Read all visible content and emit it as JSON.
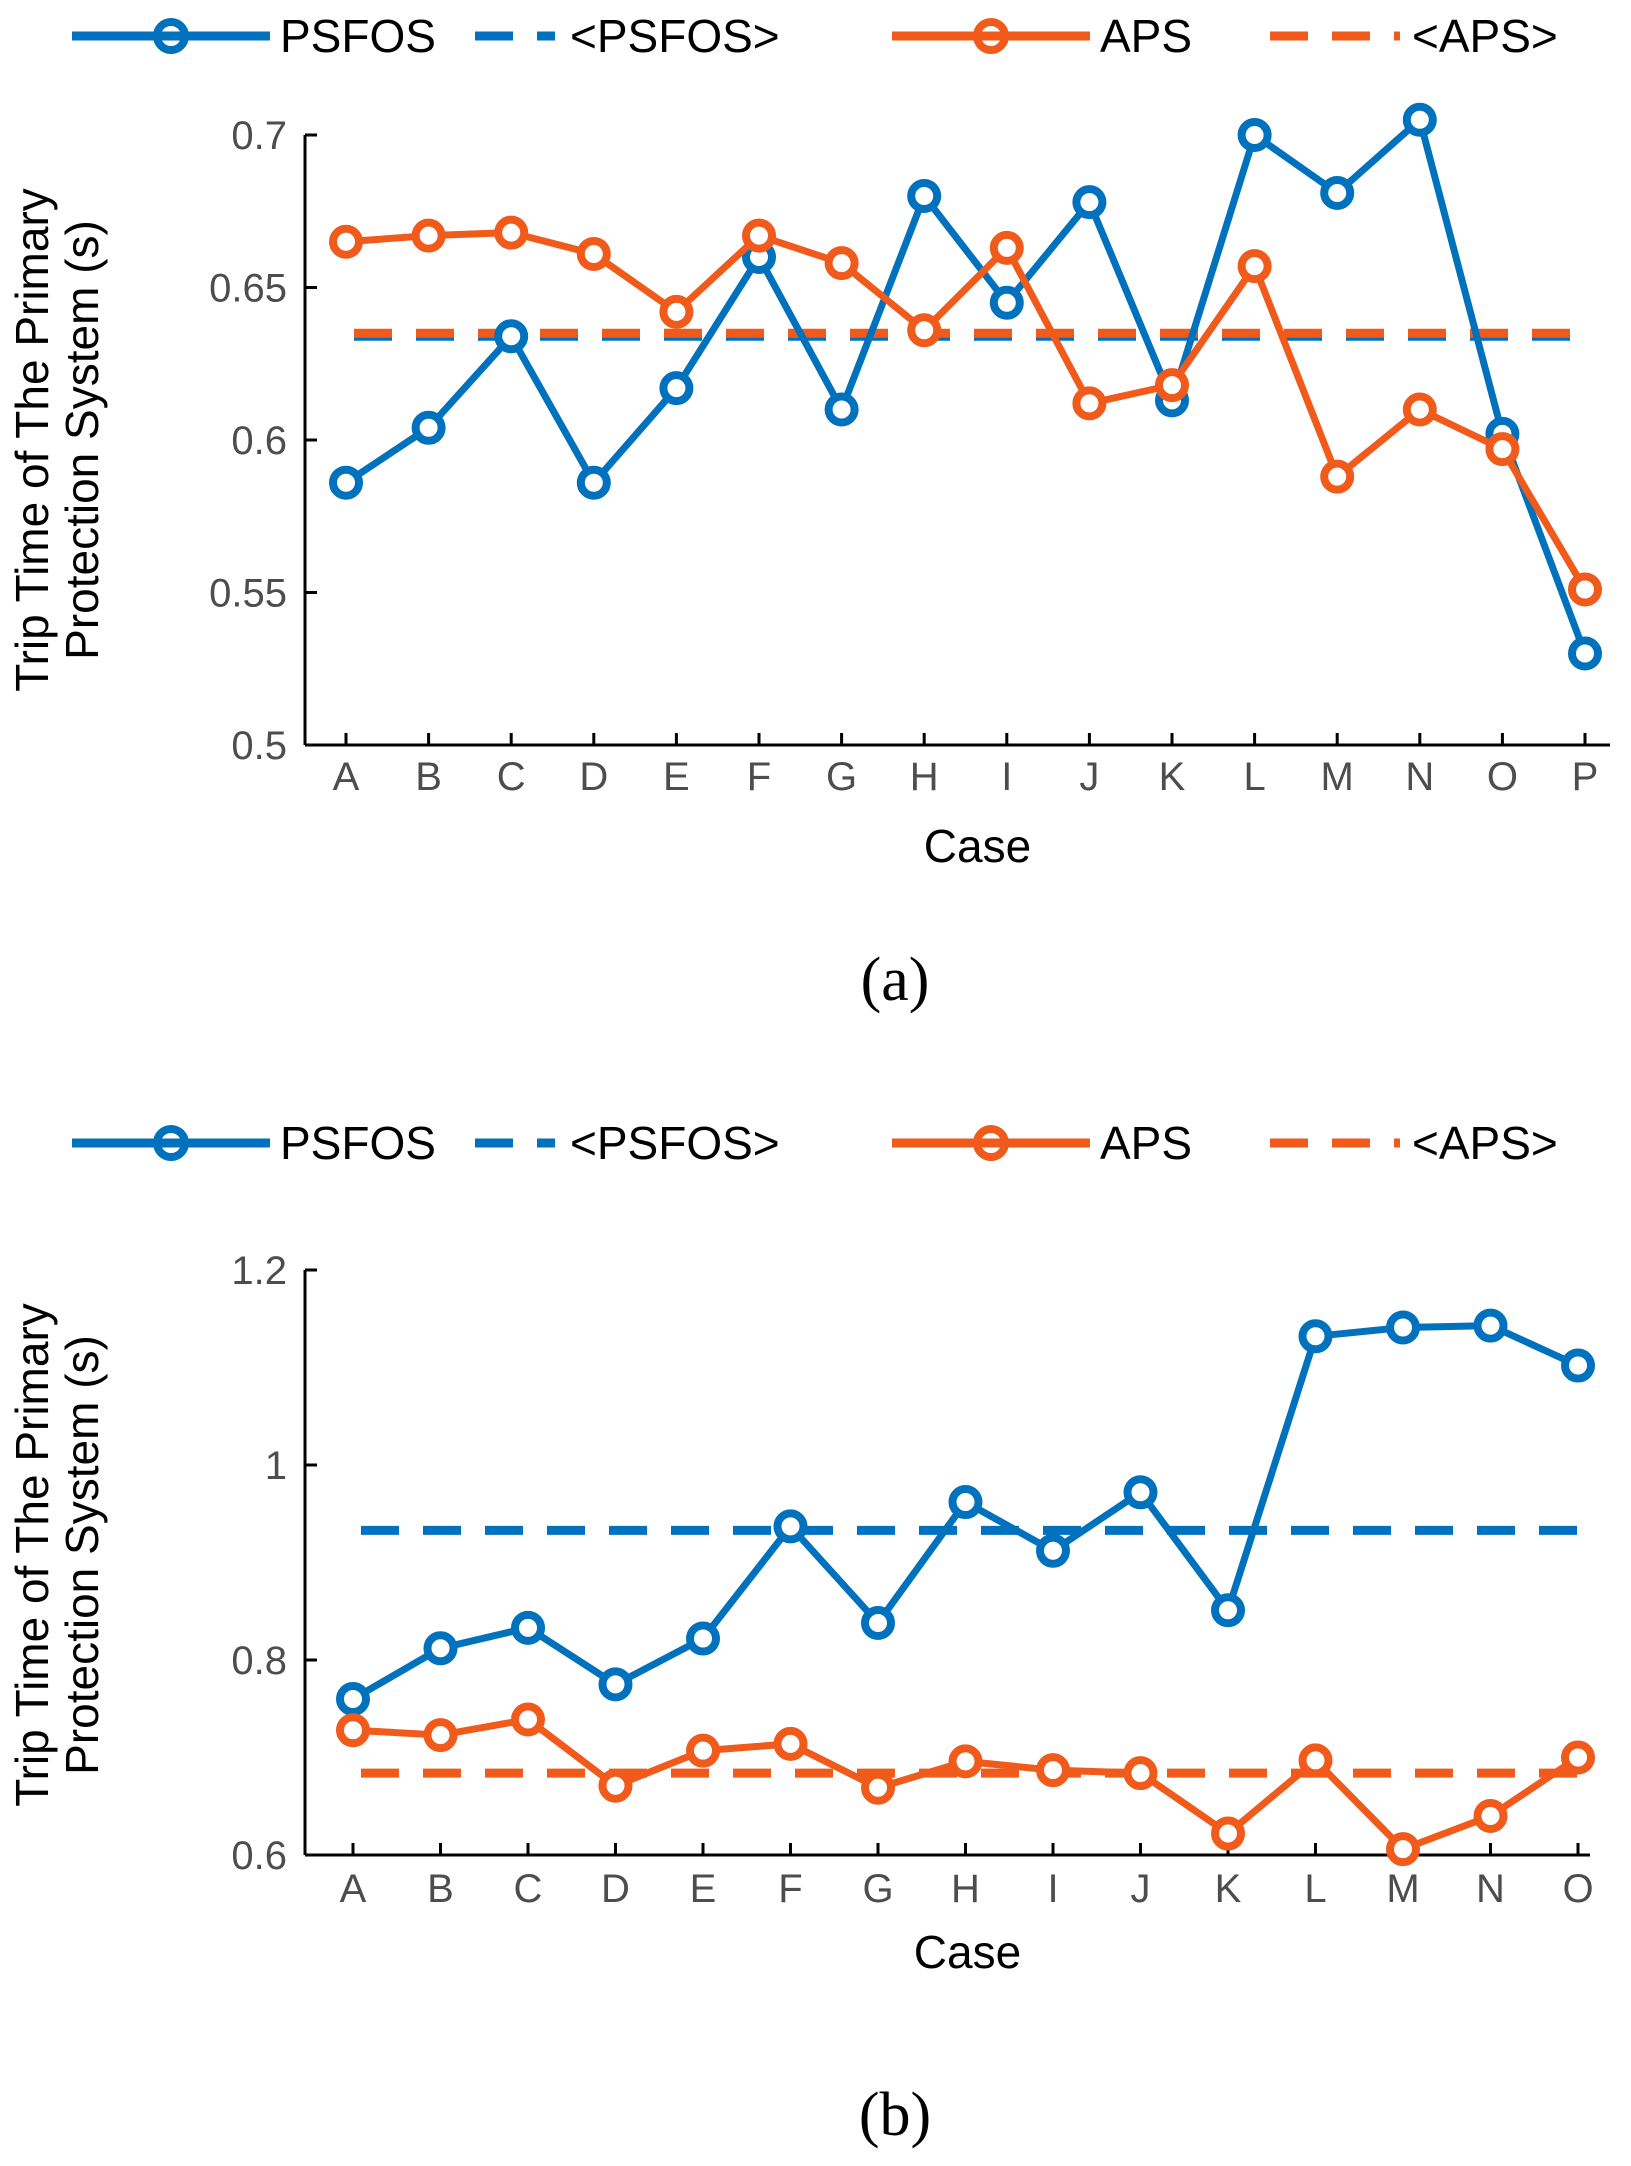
{
  "colors": {
    "psfos": "#0072bd",
    "aps": "#f05a1a"
  },
  "chart_data": [
    {
      "type": "line",
      "caption": "(a)",
      "xlabel": "Case",
      "ylabel_line1": "Trip Time of The Primary",
      "ylabel_line2": "Protection System (s)",
      "ylim": [
        0.5,
        0.7
      ],
      "yticks": [
        0.5,
        0.55,
        0.6,
        0.65,
        0.7
      ],
      "ytick_labels": [
        "0.5",
        "0.55",
        "0.6",
        "0.65",
        "0.7"
      ],
      "categories": [
        "A",
        "B",
        "C",
        "D",
        "E",
        "F",
        "G",
        "H",
        "I",
        "J",
        "K",
        "L",
        "M",
        "N",
        "O",
        "P"
      ],
      "legend": [
        "PSFOS",
        "<PSFOS>",
        "APS",
        "<APS>"
      ],
      "series": [
        {
          "name": "PSFOS",
          "style": "solid-marker",
          "color": "psfos",
          "values": [
            0.586,
            0.604,
            0.634,
            0.586,
            0.617,
            0.66,
            0.61,
            0.68,
            0.645,
            0.678,
            0.613,
            0.7,
            0.681,
            0.705,
            0.602,
            0.53
          ]
        },
        {
          "name": "<PSFOS>",
          "style": "dashed",
          "color": "psfos",
          "values": [
            0.634,
            0.634,
            0.634,
            0.634,
            0.634,
            0.634,
            0.634,
            0.634,
            0.634,
            0.634,
            0.634,
            0.634,
            0.634,
            0.634,
            0.634,
            0.634
          ]
        },
        {
          "name": "APS",
          "style": "solid-marker",
          "color": "aps",
          "values": [
            0.665,
            0.667,
            0.668,
            0.661,
            0.642,
            0.667,
            0.658,
            0.636,
            0.663,
            0.612,
            0.618,
            0.657,
            0.588,
            0.61,
            0.597,
            0.551
          ]
        },
        {
          "name": "<APS>",
          "style": "dashed",
          "color": "aps",
          "values": [
            0.635,
            0.635,
            0.635,
            0.635,
            0.635,
            0.635,
            0.635,
            0.635,
            0.635,
            0.635,
            0.635,
            0.635,
            0.635,
            0.635,
            0.635,
            0.635
          ]
        }
      ]
    },
    {
      "type": "line",
      "caption": "(b)",
      "xlabel": "Case",
      "ylabel_line1": "Trip Time of The Primary",
      "ylabel_line2": "Protection System (s)",
      "ylim": [
        0.6,
        1.2
      ],
      "yticks": [
        0.6,
        0.8,
        1.0,
        1.2
      ],
      "ytick_labels": [
        "0.6",
        "0.8",
        "1",
        "1.2"
      ],
      "categories": [
        "A",
        "B",
        "C",
        "D",
        "E",
        "F",
        "G",
        "H",
        "I",
        "J",
        "K",
        "L",
        "M",
        "N",
        "O"
      ],
      "legend": [
        "PSFOS",
        "<PSFOS>",
        "APS",
        "<APS>"
      ],
      "series": [
        {
          "name": "PSFOS",
          "style": "solid-marker",
          "color": "psfos",
          "values": [
            0.76,
            0.812,
            0.833,
            0.775,
            0.822,
            0.937,
            0.838,
            0.962,
            0.912,
            0.972,
            0.851,
            1.132,
            1.141,
            1.143,
            1.102
          ]
        },
        {
          "name": "<PSFOS>",
          "style": "dashed",
          "color": "psfos",
          "values": [
            0.933,
            0.933,
            0.933,
            0.933,
            0.933,
            0.933,
            0.933,
            0.933,
            0.933,
            0.933,
            0.933,
            0.933,
            0.933,
            0.933,
            0.933
          ]
        },
        {
          "name": "APS",
          "style": "solid-marker",
          "color": "aps",
          "values": [
            0.728,
            0.723,
            0.739,
            0.671,
            0.707,
            0.714,
            0.669,
            0.696,
            0.687,
            0.684,
            0.622,
            0.697,
            0.606,
            0.64,
            0.7
          ]
        },
        {
          "name": "<APS>",
          "style": "dashed",
          "color": "aps",
          "values": [
            0.684,
            0.684,
            0.684,
            0.684,
            0.684,
            0.684,
            0.684,
            0.684,
            0.684,
            0.684,
            0.684,
            0.684,
            0.684,
            0.684,
            0.684
          ]
        }
      ]
    }
  ]
}
